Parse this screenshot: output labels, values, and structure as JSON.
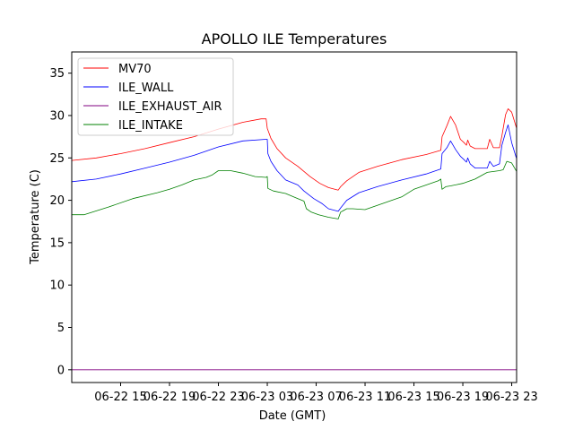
{
  "chart_data": {
    "type": "line",
    "title": "APOLLO ILE Temperatures",
    "xlabel": "Date (GMT)",
    "ylabel": "Temperature (C)",
    "x_unit": "hours since 06-22 00 GMT",
    "xlim": [
      11.0,
      47.4
    ],
    "ylim": [
      -1.5,
      37.5
    ],
    "x_ticks": [
      {
        "value": 15,
        "label": "06-22 15"
      },
      {
        "value": 19,
        "label": "06-22 19"
      },
      {
        "value": 23,
        "label": "06-22 23"
      },
      {
        "value": 27,
        "label": "06-23 03"
      },
      {
        "value": 31,
        "label": "06-23 07"
      },
      {
        "value": 35,
        "label": "06-23 11"
      },
      {
        "value": 39,
        "label": "06-23 15"
      },
      {
        "value": 43,
        "label": "06-23 19"
      },
      {
        "value": 47,
        "label": "06-23 23"
      }
    ],
    "y_ticks": [
      0,
      5,
      10,
      15,
      20,
      25,
      30,
      35
    ],
    "legend_position": "upper-left",
    "grid": false,
    "series": [
      {
        "name": "MV70",
        "color": "#ff0000",
        "points": [
          [
            11.0,
            24.7
          ],
          [
            13.0,
            25.0
          ],
          [
            15.0,
            25.5
          ],
          [
            17.0,
            26.1
          ],
          [
            19.0,
            26.8
          ],
          [
            21.0,
            27.5
          ],
          [
            23.0,
            28.4
          ],
          [
            25.0,
            29.2
          ],
          [
            26.5,
            29.6
          ],
          [
            26.9,
            29.6
          ],
          [
            27.0,
            28.5
          ],
          [
            27.3,
            27.3
          ],
          [
            27.8,
            26.1
          ],
          [
            28.5,
            25.0
          ],
          [
            29.5,
            24.0
          ],
          [
            30.5,
            22.8
          ],
          [
            31.3,
            22.0
          ],
          [
            32.0,
            21.5
          ],
          [
            32.8,
            21.2
          ],
          [
            33.0,
            21.6
          ],
          [
            33.5,
            22.3
          ],
          [
            34.5,
            23.3
          ],
          [
            36.0,
            24.0
          ],
          [
            38.0,
            24.8
          ],
          [
            40.0,
            25.4
          ],
          [
            41.2,
            25.9
          ],
          [
            41.3,
            27.5
          ],
          [
            41.7,
            28.8
          ],
          [
            42.0,
            29.9
          ],
          [
            42.4,
            28.9
          ],
          [
            42.8,
            27.2
          ],
          [
            43.1,
            26.8
          ],
          [
            43.3,
            26.5
          ],
          [
            43.4,
            27.1
          ],
          [
            43.6,
            26.4
          ],
          [
            44.0,
            26.1
          ],
          [
            45.0,
            26.1
          ],
          [
            45.2,
            27.2
          ],
          [
            45.5,
            26.2
          ],
          [
            46.0,
            26.2
          ],
          [
            46.2,
            27.6
          ],
          [
            46.5,
            30.1
          ],
          [
            46.7,
            30.8
          ],
          [
            47.0,
            30.4
          ],
          [
            47.4,
            28.5
          ]
        ]
      },
      {
        "name": "ILE_WALL",
        "color": "#0000ff",
        "points": [
          [
            11.0,
            22.2
          ],
          [
            13.0,
            22.5
          ],
          [
            15.0,
            23.1
          ],
          [
            17.0,
            23.8
          ],
          [
            19.0,
            24.5
          ],
          [
            21.0,
            25.3
          ],
          [
            23.0,
            26.3
          ],
          [
            25.0,
            27.0
          ],
          [
            26.9,
            27.2
          ],
          [
            27.0,
            27.2
          ],
          [
            27.05,
            25.5
          ],
          [
            27.3,
            24.6
          ],
          [
            27.8,
            23.5
          ],
          [
            28.5,
            22.4
          ],
          [
            29.5,
            21.8
          ],
          [
            30.0,
            21.1
          ],
          [
            30.8,
            20.2
          ],
          [
            31.5,
            19.6
          ],
          [
            32.0,
            19.0
          ],
          [
            32.8,
            18.7
          ],
          [
            33.0,
            19.1
          ],
          [
            33.5,
            20.0
          ],
          [
            34.5,
            20.9
          ],
          [
            36.0,
            21.6
          ],
          [
            38.0,
            22.4
          ],
          [
            40.0,
            23.1
          ],
          [
            41.2,
            23.7
          ],
          [
            41.3,
            25.5
          ],
          [
            41.7,
            26.2
          ],
          [
            42.0,
            27.0
          ],
          [
            42.4,
            26.0
          ],
          [
            42.8,
            25.2
          ],
          [
            43.1,
            24.8
          ],
          [
            43.3,
            24.5
          ],
          [
            43.4,
            25.0
          ],
          [
            43.6,
            24.3
          ],
          [
            44.0,
            23.8
          ],
          [
            45.0,
            23.8
          ],
          [
            45.2,
            24.6
          ],
          [
            45.5,
            24.0
          ],
          [
            46.0,
            24.3
          ],
          [
            46.2,
            26.5
          ],
          [
            46.5,
            28.0
          ],
          [
            46.7,
            28.9
          ],
          [
            47.0,
            26.8
          ],
          [
            47.4,
            24.9
          ]
        ]
      },
      {
        "name": "ILE_EXHAUST_AIR",
        "color": "#800080",
        "points": [
          [
            11.0,
            0.0
          ],
          [
            47.4,
            0.0
          ]
        ]
      },
      {
        "name": "ILE_INTAKE",
        "color": "#008000",
        "points": [
          [
            11.0,
            18.3
          ],
          [
            12.0,
            18.3
          ],
          [
            14.0,
            19.2
          ],
          [
            16.0,
            20.2
          ],
          [
            18.0,
            20.9
          ],
          [
            19.0,
            21.3
          ],
          [
            20.0,
            21.8
          ],
          [
            21.0,
            22.4
          ],
          [
            22.0,
            22.7
          ],
          [
            22.5,
            23.0
          ],
          [
            23.0,
            23.5
          ],
          [
            24.0,
            23.5
          ],
          [
            25.0,
            23.2
          ],
          [
            26.0,
            22.8
          ],
          [
            26.9,
            22.7
          ],
          [
            27.0,
            22.8
          ],
          [
            27.05,
            21.4
          ],
          [
            27.5,
            21.1
          ],
          [
            28.5,
            20.8
          ],
          [
            29.5,
            20.2
          ],
          [
            30.0,
            19.9
          ],
          [
            30.2,
            19.0
          ],
          [
            30.6,
            18.6
          ],
          [
            31.2,
            18.3
          ],
          [
            32.0,
            18.0
          ],
          [
            32.8,
            17.8
          ],
          [
            33.0,
            18.6
          ],
          [
            33.5,
            19.0
          ],
          [
            34.0,
            19.0
          ],
          [
            35.0,
            18.9
          ],
          [
            36.0,
            19.4
          ],
          [
            37.0,
            19.9
          ],
          [
            38.0,
            20.4
          ],
          [
            39.0,
            21.3
          ],
          [
            40.0,
            21.8
          ],
          [
            41.0,
            22.3
          ],
          [
            41.2,
            22.5
          ],
          [
            41.3,
            21.3
          ],
          [
            41.6,
            21.6
          ],
          [
            42.0,
            21.7
          ],
          [
            43.0,
            22.0
          ],
          [
            44.0,
            22.5
          ],
          [
            45.0,
            23.3
          ],
          [
            46.0,
            23.5
          ],
          [
            46.3,
            23.6
          ],
          [
            46.6,
            24.6
          ],
          [
            47.0,
            24.4
          ],
          [
            47.4,
            23.4
          ]
        ]
      }
    ]
  }
}
